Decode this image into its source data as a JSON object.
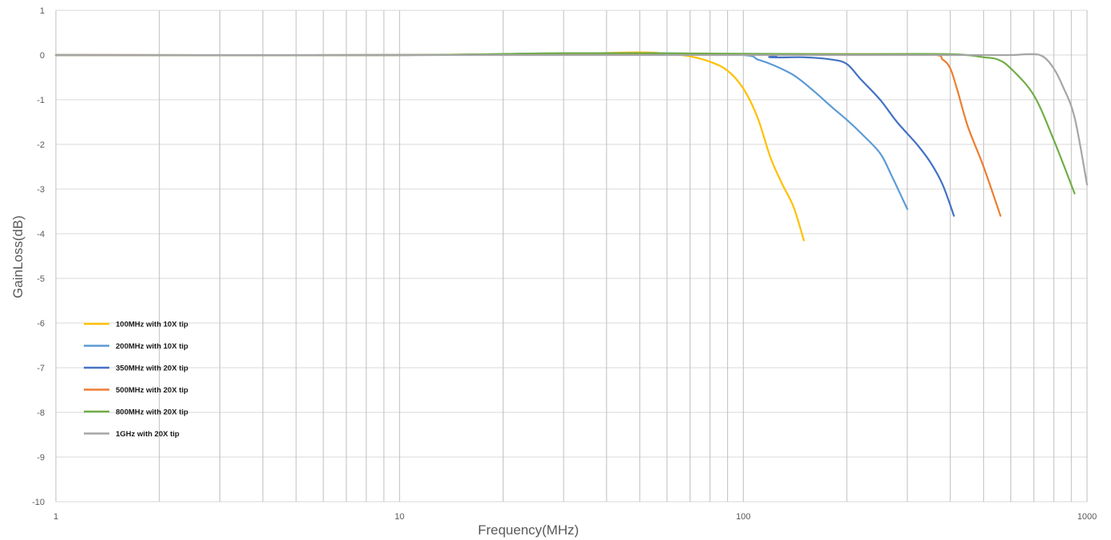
{
  "chart_data": {
    "type": "line",
    "title": "",
    "xlabel": "Frequency(MHz)",
    "ylabel": "GainLoss(dB)",
    "xscale": "log",
    "xlim": [
      1,
      1000
    ],
    "ylim": [
      -10,
      1
    ],
    "x_tick_labels": [
      "1",
      "10",
      "100",
      "1000"
    ],
    "y_ticks": [
      1,
      0,
      -1,
      -2,
      -3,
      -4,
      -5,
      -6,
      -7,
      -8,
      -9,
      -10
    ],
    "y_tick_labels": [
      "1",
      "0",
      "-1",
      "-2",
      "-3",
      "-4",
      "-5",
      "-6",
      "-7",
      "-8",
      "-9",
      "-10"
    ],
    "grid": true,
    "legend_position": "bottom-left",
    "series": [
      {
        "name": "100MHz with 10X tip",
        "color": "#FFC000",
        "points": [
          [
            1,
            0
          ],
          [
            10,
            0
          ],
          [
            30,
            0.03
          ],
          [
            50,
            0.06
          ],
          [
            60,
            0.03
          ],
          [
            70,
            -0.03
          ],
          [
            80,
            -0.15
          ],
          [
            90,
            -0.35
          ],
          [
            100,
            -0.75
          ],
          [
            110,
            -1.4
          ],
          [
            120,
            -2.3
          ],
          [
            130,
            -2.9
          ],
          [
            140,
            -3.4
          ],
          [
            150,
            -4.15
          ]
        ]
      },
      {
        "name": "200MHz with 10X tip",
        "color": "#5B9BD5",
        "points": [
          [
            1,
            0
          ],
          [
            10,
            0
          ],
          [
            30,
            0.04
          ],
          [
            60,
            0.04
          ],
          [
            100,
            0.0
          ],
          [
            110,
            -0.1
          ],
          [
            120,
            -0.2
          ],
          [
            140,
            -0.45
          ],
          [
            160,
            -0.8
          ],
          [
            180,
            -1.15
          ],
          [
            200,
            -1.45
          ],
          [
            220,
            -1.75
          ],
          [
            250,
            -2.2
          ],
          [
            270,
            -2.7
          ],
          [
            300,
            -3.45
          ]
        ]
      },
      {
        "name": "350MHz with 20X tip",
        "color": "#4472C4",
        "points": [
          [
            1,
            0
          ],
          [
            10,
            0
          ],
          [
            100,
            0.02
          ],
          [
            120,
            -0.05
          ],
          [
            150,
            -0.05
          ],
          [
            180,
            -0.1
          ],
          [
            200,
            -0.2
          ],
          [
            220,
            -0.55
          ],
          [
            250,
            -1.0
          ],
          [
            280,
            -1.5
          ],
          [
            320,
            -2.0
          ],
          [
            350,
            -2.4
          ],
          [
            380,
            -2.9
          ],
          [
            410,
            -3.6
          ]
        ]
      },
      {
        "name": "500MHz with 20X tip",
        "color": "#ED7D31",
        "points": [
          [
            1,
            0
          ],
          [
            10,
            0
          ],
          [
            100,
            0.02
          ],
          [
            200,
            0.02
          ],
          [
            350,
            0.01
          ],
          [
            380,
            -0.1
          ],
          [
            400,
            -0.3
          ],
          [
            420,
            -0.8
          ],
          [
            450,
            -1.6
          ],
          [
            500,
            -2.5
          ],
          [
            560,
            -3.6
          ]
        ]
      },
      {
        "name": "800MHz with 20X tip",
        "color": "#70AD47",
        "points": [
          [
            1,
            0
          ],
          [
            10,
            0
          ],
          [
            30,
            0.04
          ],
          [
            100,
            0.03
          ],
          [
            200,
            0.02
          ],
          [
            400,
            0.02
          ],
          [
            500,
            -0.05
          ],
          [
            550,
            -0.1
          ],
          [
            600,
            -0.3
          ],
          [
            700,
            -0.9
          ],
          [
            800,
            -1.9
          ],
          [
            920,
            -3.1
          ]
        ]
      },
      {
        "name": "1GHz with 20X tip",
        "color": "#A5A5A5",
        "points": [
          [
            1,
            0
          ],
          [
            10,
            0
          ],
          [
            100,
            0.0
          ],
          [
            300,
            0.0
          ],
          [
            500,
            0.0
          ],
          [
            600,
            0.0
          ],
          [
            700,
            0.02
          ],
          [
            750,
            -0.05
          ],
          [
            800,
            -0.3
          ],
          [
            850,
            -0.7
          ],
          [
            920,
            -1.4
          ],
          [
            1000,
            -2.9
          ]
        ]
      }
    ]
  }
}
